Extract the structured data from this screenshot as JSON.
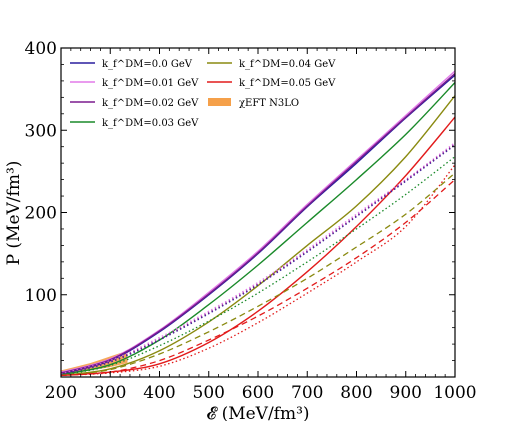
{
  "chart_data": {
    "type": "line",
    "xlabel": "𝓔 (MeV/fm³)",
    "ylabel": "P (MeV/fm³)",
    "xlim": [
      200,
      1000
    ],
    "ylim": [
      0,
      400
    ],
    "x_ticks": [
      "200",
      "300",
      "400",
      "500",
      "600",
      "700",
      "800",
      "900",
      "1000"
    ],
    "y_ticks": [
      "100",
      "200",
      "300",
      "400"
    ],
    "legend_position": "top-left",
    "legend": [
      {
        "label": "k_f^DM=0.0 GeV",
        "color": "#2a1f9e",
        "kind": "line"
      },
      {
        "label": "k_f^DM=0.01 GeV",
        "color": "#e27ae9",
        "kind": "line"
      },
      {
        "label": "k_f^DM=0.02 GeV",
        "color": "#7b1b8e",
        "kind": "line"
      },
      {
        "label": "k_f^DM=0.03 GeV",
        "color": "#1a8a2a",
        "kind": "line"
      },
      {
        "label": "k_f^DM=0.04 GeV",
        "color": "#8a8a10",
        "kind": "line"
      },
      {
        "label": "k_f^DM=0.05 GeV",
        "color": "#e21b1b",
        "kind": "line"
      },
      {
        "label": "χEFT N3LO",
        "color": "#f5a04a",
        "kind": "band"
      }
    ],
    "series": [
      {
        "color": "#2a1f9e",
        "dash": "solid",
        "x": [
          200,
          300,
          400,
          500,
          600,
          700,
          800,
          900,
          1000
        ],
        "y": [
          4,
          20,
          55,
          100,
          150,
          207,
          260,
          315,
          367
        ]
      },
      {
        "color": "#e27ae9",
        "dash": "solid",
        "x": [
          200,
          300,
          400,
          500,
          600,
          700,
          800,
          900,
          1000
        ],
        "y": [
          6,
          22,
          57,
          103,
          153,
          210,
          264,
          318,
          372
        ]
      },
      {
        "color": "#7b1b8e",
        "dash": "solid",
        "x": [
          200,
          300,
          400,
          500,
          600,
          700,
          800,
          900,
          1000
        ],
        "y": [
          5,
          21,
          56,
          101,
          151,
          208,
          262,
          316,
          369
        ]
      },
      {
        "color": "#1a8a2a",
        "dash": "solid",
        "x": [
          200,
          300,
          400,
          500,
          600,
          700,
          800,
          900,
          1000
        ],
        "y": [
          3,
          15,
          45,
          88,
          136,
          188,
          240,
          295,
          358
        ]
      },
      {
        "color": "#8a8a10",
        "dash": "solid",
        "x": [
          200,
          300,
          400,
          500,
          600,
          700,
          800,
          900,
          1000
        ],
        "y": [
          2,
          10,
          32,
          67,
          111,
          160,
          208,
          268,
          342
        ]
      },
      {
        "color": "#e21b1b",
        "dash": "solid",
        "x": [
          200,
          300,
          400,
          500,
          600,
          700,
          800,
          900,
          1000
        ],
        "y": [
          2,
          6,
          16,
          42,
          80,
          128,
          183,
          245,
          316
        ]
      },
      {
        "color": "#2a1f9e",
        "dash": "dotted",
        "x": [
          200,
          300,
          400,
          500,
          600,
          700,
          800,
          900,
          1000
        ],
        "y": [
          3,
          18,
          45,
          77,
          112,
          152,
          195,
          238,
          282
        ]
      },
      {
        "color": "#e27ae9",
        "dash": "dotted",
        "x": [
          200,
          300,
          400,
          500,
          600,
          700,
          800,
          900,
          1000
        ],
        "y": [
          4,
          20,
          48,
          80,
          115,
          155,
          198,
          240,
          285
        ]
      },
      {
        "color": "#7b1b8e",
        "dash": "dotted",
        "x": [
          200,
          300,
          400,
          500,
          600,
          700,
          800,
          900,
          1000
        ],
        "y": [
          3,
          19,
          46,
          78,
          113,
          153,
          196,
          239,
          283
        ]
      },
      {
        "color": "#1a8a2a",
        "dash": "dotted",
        "x": [
          200,
          300,
          400,
          500,
          600,
          700,
          800,
          900,
          1000
        ],
        "y": [
          2,
          14,
          38,
          68,
          102,
          140,
          180,
          222,
          268
        ]
      },
      {
        "color": "#e21b1b",
        "dash": "dotted",
        "x": [
          200,
          300,
          400,
          500,
          600,
          700,
          800,
          900,
          1000
        ],
        "y": [
          2,
          5,
          13,
          35,
          66,
          102,
          140,
          183,
          258
        ]
      },
      {
        "color": "#8a8a10",
        "dash": "dashed",
        "x": [
          200,
          300,
          400,
          500,
          600,
          700,
          800,
          900,
          1000
        ],
        "y": [
          2,
          9,
          28,
          55,
          86,
          120,
          158,
          198,
          248
        ]
      },
      {
        "color": "#e21b1b",
        "dash": "dashed",
        "x": [
          200,
          300,
          400,
          500,
          600,
          700,
          800,
          900,
          1000
        ],
        "y": [
          2,
          6,
          20,
          45,
          74,
          108,
          145,
          188,
          240
        ]
      }
    ],
    "band": {
      "name": "χEFT N3LO",
      "color": "#f5a04a",
      "x": [
        200,
        220,
        240,
        260,
        280,
        300,
        320,
        335
      ],
      "lower": [
        2,
        4,
        6,
        8,
        10,
        12,
        15,
        17
      ],
      "upper": [
        8,
        11,
        14,
        17,
        21,
        25,
        29,
        32
      ]
    }
  }
}
